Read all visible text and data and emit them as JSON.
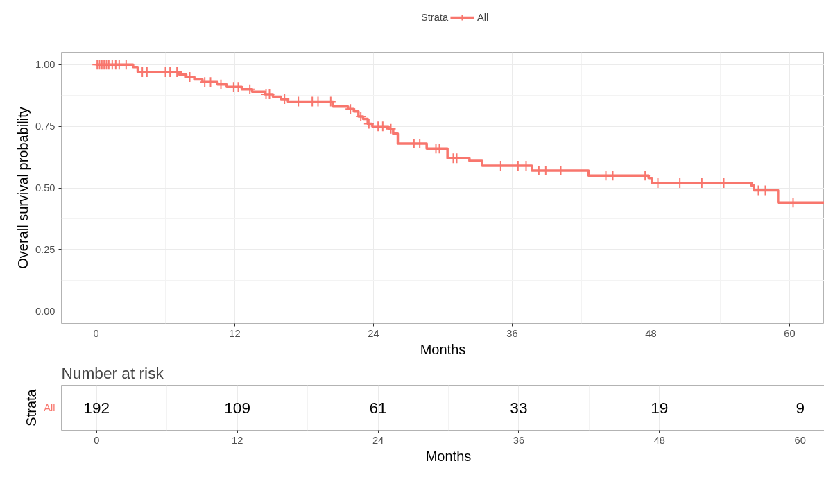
{
  "chart_data": [
    {
      "type": "step",
      "ylabel": "Overall survival probability",
      "xlabel": "Months",
      "legend_title": "Strata",
      "legend": "top",
      "xlim": [
        -3,
        63
      ],
      "xticks": [
        0,
        12,
        24,
        36,
        48,
        60
      ],
      "ylim": [
        -0.05,
        1.05
      ],
      "yticks": [
        {
          "value": 0,
          "label": "0.00"
        },
        {
          "value": 0.25,
          "label": "0.25"
        },
        {
          "value": 0.5,
          "label": "0.50"
        },
        {
          "value": 0.75,
          "label": "0.75"
        },
        {
          "value": 1,
          "label": "1.00"
        }
      ],
      "grid": true,
      "line_style": "solid",
      "series": [
        {
          "name": "All",
          "type": "step",
          "color": "#f8766d",
          "x": [
            0,
            3.2,
            3.6,
            7.2,
            7.8,
            8.5,
            9.2,
            10.5,
            11.3,
            12.6,
            13.5,
            14.6,
            15.3,
            16.0,
            16.6,
            20.5,
            21.8,
            22.3,
            22.7,
            23.1,
            23.5,
            23.9,
            25.3,
            25.7,
            26.1,
            28.6,
            30.4,
            32.3,
            33.4,
            37.7,
            42.6,
            47.8,
            48.1,
            56.7,
            56.9,
            59.0,
            63
          ],
          "values": [
            1.0,
            0.99,
            0.97,
            0.96,
            0.95,
            0.94,
            0.93,
            0.92,
            0.91,
            0.9,
            0.89,
            0.88,
            0.87,
            0.86,
            0.85,
            0.83,
            0.82,
            0.81,
            0.79,
            0.78,
            0.76,
            0.75,
            0.74,
            0.72,
            0.68,
            0.66,
            0.62,
            0.61,
            0.59,
            0.57,
            0.55,
            0.54,
            0.52,
            0.51,
            0.49,
            0.44,
            0.44
          ]
        },
        {
          "type": "scatter",
          "color": "#f8766d",
          "marker": "cross",
          "x": [
            0.1,
            0.3,
            0.5,
            0.7,
            0.9,
            1.1,
            1.4,
            1.7,
            2.0,
            2.6,
            4.0,
            4.4,
            6.0,
            6.4,
            7.0,
            8.1,
            9.4,
            9.9,
            10.8,
            11.9,
            12.3,
            13.3,
            14.7,
            15.0,
            16.3,
            17.5,
            18.7,
            19.2,
            20.3,
            22.0,
            22.9,
            23.6,
            24.4,
            24.8,
            25.5,
            27.5,
            28.0,
            29.4,
            29.7,
            30.9,
            31.2,
            35.0,
            36.5,
            37.2,
            38.3,
            38.9,
            40.2,
            44.1,
            44.7,
            47.5,
            48.6,
            50.5,
            52.4,
            54.3,
            57.3,
            57.9,
            60.3
          ],
          "values": [
            1.0,
            1.0,
            1.0,
            1.0,
            1.0,
            1.0,
            1.0,
            1.0,
            1.0,
            1.0,
            0.97,
            0.97,
            0.97,
            0.97,
            0.97,
            0.95,
            0.93,
            0.93,
            0.92,
            0.91,
            0.91,
            0.9,
            0.88,
            0.88,
            0.86,
            0.85,
            0.85,
            0.85,
            0.85,
            0.82,
            0.79,
            0.76,
            0.75,
            0.75,
            0.74,
            0.68,
            0.68,
            0.66,
            0.66,
            0.62,
            0.62,
            0.59,
            0.59,
            0.59,
            0.57,
            0.57,
            0.57,
            0.55,
            0.55,
            0.55,
            0.52,
            0.52,
            0.52,
            0.52,
            0.49,
            0.49,
            0.44
          ]
        }
      ]
    },
    {
      "type": "heatmap",
      "title": "Number at risk",
      "ylabel": "Strata",
      "xlabel": "Months",
      "xlim": [
        -3,
        63
      ],
      "xticks": [
        0,
        12,
        24,
        36,
        48,
        60
      ],
      "grid": true,
      "x": [
        0,
        12,
        24,
        36,
        48,
        60
      ],
      "y_categories": [
        "All"
      ],
      "color": "#f8766d",
      "data_labels": true,
      "cells": [
        [
          192,
          109,
          61,
          33,
          19,
          9
        ]
      ]
    }
  ]
}
